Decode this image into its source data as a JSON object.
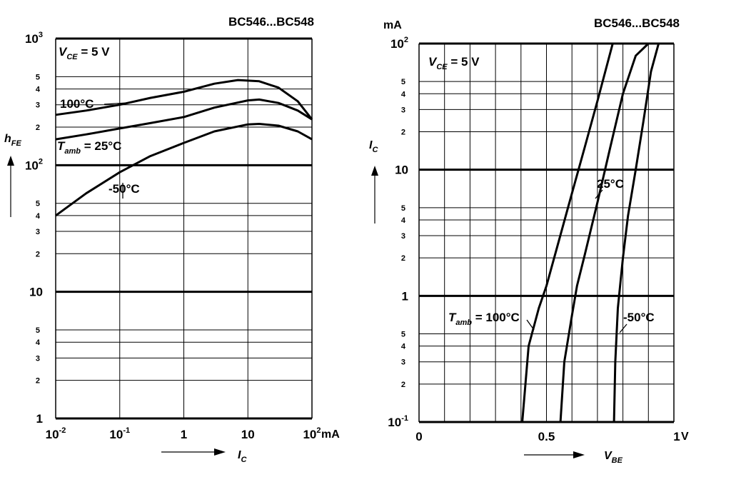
{
  "chart_data": [
    {
      "type": "line",
      "title": "BC546...BC548",
      "x_scale": "log",
      "y_scale": "log",
      "xlim": [
        0.01,
        100
      ],
      "ylim": [
        1,
        1000
      ],
      "x_ticks": [
        {
          "value": 0.01,
          "base": "10",
          "exp": "-2"
        },
        {
          "value": 0.1,
          "base": "10",
          "exp": "-1"
        },
        {
          "value": 1,
          "base": "1",
          "exp": ""
        },
        {
          "value": 10,
          "base": "10",
          "exp": ""
        },
        {
          "value": 100,
          "base": "10",
          "exp": "2"
        }
      ],
      "x_unit": "mA",
      "y_major_ticks": [
        {
          "value": 1,
          "base": "1",
          "exp": ""
        },
        {
          "value": 10,
          "base": "10",
          "exp": ""
        },
        {
          "value": 100,
          "base": "10",
          "exp": "2"
        },
        {
          "value": 1000,
          "base": "10",
          "exp": "3"
        }
      ],
      "y_minor_labels": [
        "2",
        "3",
        "4",
        "5"
      ],
      "xlabel": {
        "main": "I",
        "sub": "C"
      },
      "ylabel": {
        "main": "h",
        "sub": "FE"
      },
      "condition": {
        "main": "V",
        "sub": "CE",
        "rest": " = 5 V"
      },
      "series": [
        {
          "name": "100°C",
          "x": [
            0.01,
            0.03,
            0.1,
            0.3,
            1,
            3,
            7,
            15,
            30,
            60,
            100
          ],
          "y": [
            250,
            270,
            300,
            340,
            380,
            440,
            470,
            460,
            410,
            320,
            230
          ]
        },
        {
          "name": "25°C",
          "x": [
            0.01,
            0.03,
            0.1,
            0.3,
            1,
            3,
            10,
            15,
            30,
            60,
            100
          ],
          "y": [
            160,
            175,
            195,
            215,
            240,
            285,
            325,
            330,
            310,
            270,
            230
          ]
        },
        {
          "name": "-50°C",
          "x": [
            0.01,
            0.03,
            0.1,
            0.3,
            1,
            3,
            10,
            15,
            30,
            60,
            100
          ],
          "y": [
            40,
            60,
            88,
            118,
            150,
            185,
            210,
            212,
            205,
            185,
            160
          ]
        }
      ],
      "labels": {
        "t100": "100°C",
        "tamb_main": "T",
        "tamb_sub": "amb",
        "tamb_rest": " = 25°C",
        "tm50": "-50°C"
      }
    },
    {
      "type": "line",
      "title": "BC546...BC548",
      "x_scale": "linear",
      "y_scale": "log",
      "xlim": [
        0,
        1
      ],
      "ylim": [
        0.1,
        100
      ],
      "x_ticks": [
        {
          "value": 0,
          "label": "0"
        },
        {
          "value": 0.5,
          "label": "0.5"
        },
        {
          "value": 1,
          "label": "1"
        }
      ],
      "x_unit": "V",
      "y_unit": "mA",
      "y_major_ticks": [
        {
          "value": 0.1,
          "base": "10",
          "exp": "-1"
        },
        {
          "value": 1,
          "base": "1",
          "exp": ""
        },
        {
          "value": 10,
          "base": "10",
          "exp": ""
        },
        {
          "value": 100,
          "base": "10",
          "exp": "2"
        }
      ],
      "y_minor_labels": [
        "2",
        "3",
        "4",
        "5"
      ],
      "xlabel": {
        "main": "V",
        "sub": "BE"
      },
      "ylabel": {
        "main": "I",
        "sub": "C"
      },
      "condition": {
        "main": "V",
        "sub": "CE",
        "rest": " = 5 V"
      },
      "series": [
        {
          "name": "100°C",
          "x": [
            0.405,
            0.43,
            0.47,
            0.5,
            0.55,
            0.6,
            0.65,
            0.7,
            0.76
          ],
          "y": [
            0.1,
            0.4,
            0.8,
            1.2,
            2.8,
            6.5,
            15,
            35,
            100
          ]
        },
        {
          "name": "25°C",
          "x": [
            0.555,
            0.57,
            0.6,
            0.62,
            0.65,
            0.7,
            0.75,
            0.8,
            0.85,
            0.9
          ],
          "y": [
            0.1,
            0.3,
            0.7,
            1.2,
            2.1,
            5.5,
            15,
            40,
            80,
            100
          ]
        },
        {
          "name": "-50°C",
          "x": [
            0.765,
            0.77,
            0.78,
            0.8,
            0.82,
            0.85,
            0.88,
            0.91,
            0.94
          ],
          "y": [
            0.1,
            0.3,
            0.8,
            2,
            4.3,
            10,
            24,
            60,
            100
          ]
        }
      ],
      "labels": {
        "tamb_main": "T",
        "tamb_sub": "amb",
        "tamb_rest": " = 100°C",
        "t25": "25°C",
        "tm50": "-50°C"
      }
    }
  ]
}
